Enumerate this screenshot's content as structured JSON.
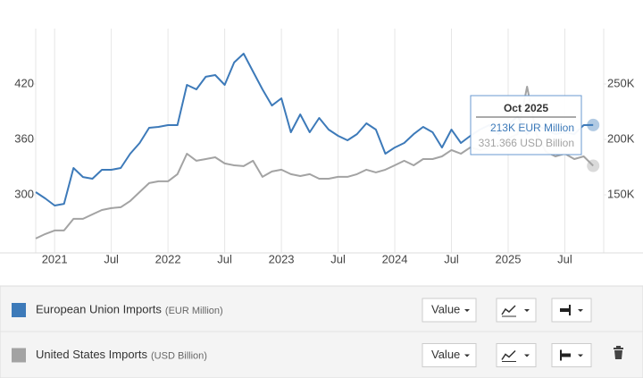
{
  "chart_data": {
    "type": "line",
    "categories": [
      null,
      null,
      "2021",
      null,
      null,
      null,
      null,
      null,
      "Jul",
      null,
      null,
      null,
      null,
      null,
      "2022",
      null,
      null,
      null,
      null,
      null,
      "Jul",
      null,
      null,
      null,
      null,
      null,
      "2023",
      null,
      null,
      null,
      null,
      null,
      "Jul",
      null,
      null,
      null,
      null,
      null,
      "2024",
      null,
      null,
      null,
      null,
      null,
      "Jul",
      null,
      null,
      null,
      null,
      null,
      "2025",
      null,
      null,
      null,
      null,
      null,
      "Jul",
      null,
      null,
      null
    ],
    "ylim": [
      237,
      480
    ],
    "yticks": [
      300,
      360,
      420
    ],
    "y2lim": [
      97600,
      300000
    ],
    "y2ticks": [
      {
        "value": 150000,
        "label": "150K"
      },
      {
        "value": 200000,
        "label": "200K"
      },
      {
        "value": 250000,
        "label": "250K"
      }
    ],
    "grid": true,
    "series": [
      {
        "name": "European Union Imports",
        "unit": "(EUR Million)",
        "color": "#3d7ab9",
        "axis": "y2",
        "values": [
          152400,
          146800,
          140300,
          141900,
          174200,
          166100,
          164500,
          172600,
          172600,
          174200,
          187100,
          196800,
          210500,
          211300,
          212900,
          212900,
          249200,
          245200,
          256500,
          258100,
          249200,
          269400,
          277400,
          261300,
          245200,
          230600,
          237100,
          206500,
          222600,
          206500,
          219400,
          208900,
          203200,
          199200,
          204800,
          214500,
          208900,
          187100,
          192700,
          196800,
          204800,
          211300,
          206500,
          192700,
          208900,
          196800,
          203200,
          208900,
          212900,
          204800,
          212900,
          221000,
          204800,
          212900,
          208900,
          204800,
          206500,
          204800,
          212900,
          213000
        ]
      },
      {
        "name": "United States Imports",
        "unit": "(USD Billion)",
        "color": "#a3a3a3",
        "values": [
          252.6,
          257.4,
          261.3,
          261.3,
          273.9,
          273.9,
          278.7,
          283.5,
          285.5,
          286.5,
          293.2,
          302.9,
          312.6,
          314.5,
          314.5,
          322.3,
          344.5,
          336.8,
          338.7,
          340.6,
          333.9,
          331.9,
          331.0,
          336.8,
          319.4,
          325.2,
          327.1,
          322.3,
          320.3,
          322.3,
          317.4,
          317.4,
          319.4,
          319.4,
          322.3,
          327.1,
          324.2,
          327.1,
          331.9,
          336.8,
          331.9,
          338.7,
          338.7,
          341.6,
          348.4,
          344.5,
          351.3,
          348.4,
          351.3,
          356.1,
          361.0,
          365.8,
          417.1,
          365.8,
          346.5,
          341.6,
          344.5,
          338.7,
          341.6,
          331.366
        ]
      }
    ],
    "tooltip": {
      "title": "Oct 2025",
      "lines": [
        "213K EUR Million",
        "331.366 USD Billion"
      ]
    }
  },
  "controls": {
    "rows": [
      {
        "mode": "Value"
      },
      {
        "mode": "Value"
      }
    ]
  }
}
